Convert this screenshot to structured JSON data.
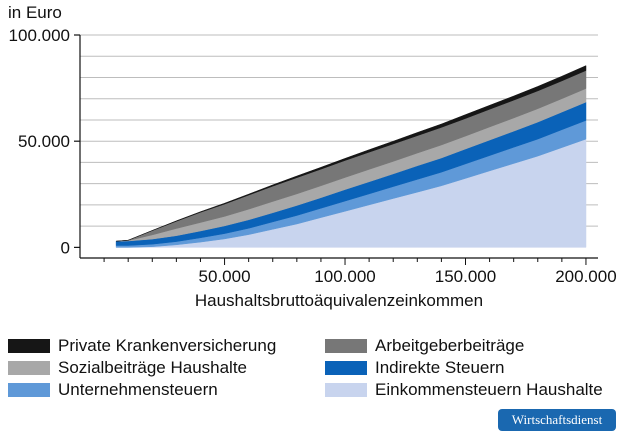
{
  "chart_data": {
    "type": "area",
    "stacked": true,
    "ylabel": "in Euro",
    "xlabel": "Haushaltsbruttoäquivalenzeinkommen",
    "xlim": [
      -10000,
      205000
    ],
    "ylim": [
      -5000,
      100000
    ],
    "x_ticks": [
      50000,
      100000,
      150000,
      200000
    ],
    "x_tick_labels": [
      "50.000",
      "100.000",
      "150.000",
      "200.000"
    ],
    "y_ticks": [
      0,
      50000,
      100000
    ],
    "y_tick_labels": [
      "0",
      "50.000",
      "100.000"
    ],
    "grid": "horizontal",
    "x": [
      5000,
      10000,
      20000,
      30000,
      40000,
      50000,
      60000,
      70000,
      80000,
      90000,
      100000,
      110000,
      120000,
      130000,
      140000,
      150000,
      160000,
      170000,
      180000,
      190000,
      200000
    ],
    "series": [
      {
        "name": "Einkommensteuern Haushalte",
        "color": "#c8d4ee",
        "values": [
          0,
          0,
          300,
          1200,
          2500,
          4000,
          6000,
          8500,
          11000,
          14000,
          17000,
          20000,
          23000,
          26000,
          29000,
          32500,
          36000,
          39500,
          43000,
          47000,
          51000
        ]
      },
      {
        "name": "Unternehmensteuern",
        "color": "#5f99d8",
        "values": [
          900,
          900,
          1200,
          1500,
          2000,
          2500,
          3000,
          3500,
          4000,
          4400,
          4800,
          5200,
          5600,
          6000,
          6400,
          6800,
          7200,
          7600,
          8000,
          8400,
          8800
        ]
      },
      {
        "name": "Indirekte Steuern",
        "color": "#0a62b8",
        "values": [
          2000,
          2100,
          2400,
          2800,
          3200,
          3600,
          4000,
          4300,
          4700,
          5000,
          5400,
          5700,
          6000,
          6400,
          6700,
          7000,
          7300,
          7600,
          8000,
          8300,
          8600
        ]
      },
      {
        "name": "Sozialbeiträge Haushalte",
        "color": "#a8a8a8",
        "values": [
          0,
          200,
          2000,
          3400,
          4000,
          4500,
          5000,
          5300,
          5500,
          5600,
          5700,
          5800,
          5900,
          6000,
          6100,
          6100,
          6200,
          6200,
          6300,
          6300,
          6400
        ]
      },
      {
        "name": "Arbeitgeberbeiträge",
        "color": "#777777",
        "values": [
          0,
          200,
          2000,
          3400,
          4800,
          5800,
          6600,
          7200,
          7600,
          7800,
          8000,
          8100,
          8200,
          8200,
          8300,
          8300,
          8300,
          8400,
          8400,
          8400,
          8500
        ]
      },
      {
        "name": "Private Krankenversicherung",
        "color": "#161616",
        "values": [
          0,
          0,
          100,
          200,
          300,
          400,
          500,
          600,
          800,
          900,
          1000,
          1200,
          1300,
          1500,
          1600,
          1800,
          1900,
          2000,
          2100,
          2200,
          2300
        ]
      }
    ],
    "legend_placement": "bottom"
  },
  "legend": {
    "items": [
      {
        "label": "Private Krankenversicherung",
        "color": "#161616"
      },
      {
        "label": "Arbeitgeberbeiträge",
        "color": "#777777"
      },
      {
        "label": "Sozialbeiträge Haushalte",
        "color": "#a8a8a8"
      },
      {
        "label": "Indirekte Steuern",
        "color": "#0a62b8"
      },
      {
        "label": "Unternehmensteuern",
        "color": "#5f99d8"
      },
      {
        "label": "Einkommensteuern Haushalte",
        "color": "#c8d4ee"
      }
    ]
  },
  "badge": {
    "label": "Wirtschaftsdienst"
  }
}
